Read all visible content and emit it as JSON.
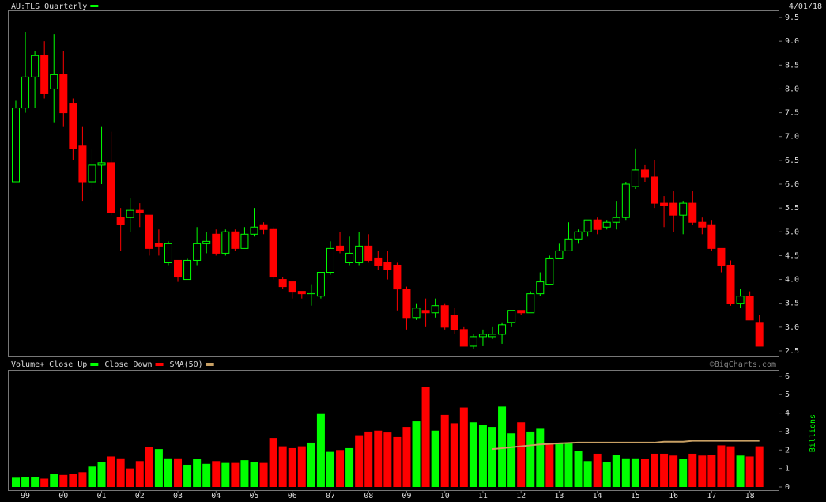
{
  "chart_data": [
    {
      "type": "candlestick",
      "title": "AU:TLS Quarterly",
      "date": "4/01/18",
      "color": "#00ff00",
      "up_color": "#00ff00",
      "down_color": "#ff0000",
      "open": [
        6.05,
        7.6,
        8.25,
        8.7,
        8.0,
        8.3,
        7.7,
        6.8,
        6.05,
        6.4,
        6.45,
        5.3,
        5.3,
        5.45,
        5.35,
        4.75,
        4.35,
        4.4,
        4.0,
        4.4,
        4.75,
        4.95,
        4.55,
        5.0,
        4.65,
        4.95,
        5.15,
        5.05,
        4.0,
        3.95,
        3.75,
        3.7,
        3.65,
        4.15,
        4.7,
        4.35,
        4.35,
        4.7,
        4.45,
        4.35,
        4.3,
        3.8,
        3.2,
        3.35,
        3.3,
        3.45,
        3.25,
        2.95,
        2.6,
        2.8,
        2.8,
        2.85,
        3.1,
        3.35,
        3.3,
        3.7,
        3.9,
        4.45,
        4.6,
        4.85,
        5.0,
        5.25,
        5.1,
        5.2,
        5.3,
        5.95,
        6.3,
        6.15,
        5.6,
        5.6,
        5.35,
        5.6,
        5.2,
        5.15,
        4.65,
        4.3,
        3.5,
        3.65,
        3.1
      ],
      "high": [
        7.75,
        9.2,
        8.8,
        9.0,
        9.15,
        8.8,
        7.8,
        7.2,
        6.75,
        7.2,
        7.1,
        5.5,
        5.7,
        5.6,
        5.35,
        5.05,
        4.8,
        4.4,
        4.45,
        5.1,
        5.0,
        5.05,
        5.05,
        5.05,
        5.1,
        5.5,
        5.2,
        5.1,
        4.05,
        3.95,
        3.75,
        3.9,
        4.15,
        4.8,
        5.0,
        4.9,
        5.0,
        4.95,
        4.6,
        4.6,
        4.35,
        3.85,
        3.5,
        3.6,
        3.6,
        3.5,
        3.4,
        3.0,
        2.85,
        2.95,
        3.0,
        3.1,
        3.35,
        3.35,
        3.75,
        4.15,
        4.5,
        4.75,
        5.2,
        5.05,
        5.25,
        5.3,
        5.25,
        5.65,
        6.05,
        6.75,
        6.4,
        6.5,
        5.75,
        5.85,
        5.65,
        5.85,
        5.3,
        5.25,
        4.65,
        4.4,
        3.8,
        3.75,
        3.25
      ],
      "low": [
        6.05,
        7.5,
        7.6,
        7.8,
        7.3,
        7.2,
        6.5,
        5.65,
        5.85,
        6.0,
        5.35,
        4.6,
        5.0,
        5.1,
        4.5,
        4.5,
        4.3,
        3.95,
        4.0,
        4.3,
        4.55,
        4.5,
        4.5,
        4.6,
        4.65,
        4.9,
        4.95,
        4.0,
        3.8,
        3.6,
        3.6,
        3.45,
        3.6,
        4.1,
        4.55,
        4.3,
        4.3,
        4.35,
        4.2,
        4.0,
        3.35,
        2.95,
        3.15,
        3.0,
        3.2,
        2.95,
        2.85,
        2.6,
        2.55,
        2.6,
        2.75,
        2.65,
        3.0,
        3.25,
        3.3,
        3.65,
        3.9,
        4.45,
        4.6,
        4.75,
        4.9,
        4.95,
        5.05,
        5.05,
        5.25,
        5.9,
        6.05,
        5.5,
        5.1,
        5.0,
        4.95,
        5.15,
        4.95,
        4.6,
        4.15,
        3.45,
        3.4,
        3.15,
        2.6
      ],
      "close": [
        7.6,
        8.25,
        8.7,
        7.9,
        8.3,
        7.5,
        6.75,
        6.05,
        6.4,
        6.45,
        5.4,
        5.15,
        5.45,
        5.4,
        4.65,
        4.7,
        4.75,
        4.05,
        4.4,
        4.75,
        4.8,
        4.55,
        5.0,
        4.65,
        4.95,
        5.1,
        5.05,
        4.05,
        3.85,
        3.75,
        3.7,
        3.72,
        4.15,
        4.65,
        4.6,
        4.55,
        4.7,
        4.4,
        4.3,
        4.2,
        3.8,
        3.2,
        3.4,
        3.3,
        3.45,
        3.0,
        2.95,
        2.6,
        2.8,
        2.85,
        2.85,
        3.05,
        3.35,
        3.3,
        3.7,
        3.95,
        4.45,
        4.6,
        4.85,
        5.0,
        5.25,
        5.05,
        5.2,
        5.3,
        6.0,
        6.3,
        6.15,
        5.6,
        5.55,
        5.35,
        5.6,
        5.2,
        5.1,
        4.65,
        4.3,
        3.5,
        3.65,
        3.15,
        2.6
      ],
      "ylim": [
        2.4,
        9.65
      ],
      "yticks": [
        {
          "value": 2.5,
          "label": "2.5"
        },
        {
          "value": 3,
          "label": "3.0"
        },
        {
          "value": 3.5,
          "label": "3.5"
        },
        {
          "value": 4,
          "label": "4.0"
        },
        {
          "value": 4.5,
          "label": "4.5"
        },
        {
          "value": 5,
          "label": "5.0"
        },
        {
          "value": 5.5,
          "label": "5.5"
        },
        {
          "value": 6,
          "label": "6.0"
        },
        {
          "value": 6.5,
          "label": "6.5"
        },
        {
          "value": 7,
          "label": "7.0"
        },
        {
          "value": 7.5,
          "label": "7.5"
        },
        {
          "value": 8,
          "label": "8.0"
        },
        {
          "value": 8.5,
          "label": "8.5"
        },
        {
          "value": 9,
          "label": "9.0"
        },
        {
          "value": 9.5,
          "label": "9.5"
        }
      ]
    },
    {
      "type": "bar",
      "source": "©BigCharts.com",
      "y_label": "Billions",
      "legend": [
        {
          "label": "Volume+ Close Up",
          "color": "#00ff00"
        },
        {
          "label": "Close Down",
          "color": "#ff0000"
        }
      ],
      "categories": [
        null,
        "99",
        null,
        null,
        null,
        "00",
        null,
        null,
        null,
        "01",
        null,
        null,
        null,
        "02",
        null,
        null,
        null,
        "03",
        null,
        null,
        null,
        "04",
        null,
        null,
        null,
        "05",
        null,
        null,
        null,
        "06",
        null,
        null,
        null,
        "07",
        null,
        null,
        null,
        "08",
        null,
        null,
        null,
        "09",
        null,
        null,
        null,
        "10",
        null,
        null,
        null,
        "11",
        null,
        null,
        null,
        "12",
        null,
        null,
        null,
        "13",
        null,
        null,
        null,
        "14",
        null,
        null,
        null,
        "15",
        null,
        null,
        null,
        "16",
        null,
        null,
        null,
        "17",
        null,
        null,
        null,
        "18",
        null
      ],
      "values": [
        0.5,
        0.55,
        0.55,
        0.45,
        0.7,
        0.65,
        0.7,
        0.8,
        1.1,
        1.35,
        1.65,
        1.55,
        1.0,
        1.4,
        2.15,
        2.05,
        1.55,
        1.55,
        1.2,
        1.5,
        1.25,
        1.4,
        1.3,
        1.3,
        1.45,
        1.35,
        1.3,
        2.65,
        2.2,
        2.1,
        2.2,
        2.4,
        3.95,
        1.9,
        2.0,
        2.1,
        2.8,
        3.0,
        3.05,
        2.95,
        2.7,
        3.25,
        3.55,
        5.4,
        3.05,
        3.9,
        3.45,
        4.3,
        3.5,
        3.35,
        3.25,
        4.35,
        2.9,
        3.5,
        3.0,
        3.15,
        2.35,
        2.4,
        2.35,
        1.95,
        1.4,
        1.8,
        1.35,
        1.75,
        1.55,
        1.55,
        1.5,
        1.8,
        1.8,
        1.7,
        1.5,
        1.8,
        1.7,
        1.75,
        2.25,
        2.2,
        1.7,
        1.65,
        2.2
      ],
      "colors": [
        "#00ff00",
        "#00ff00",
        "#00ff00",
        "#ff0000",
        "#00ff00",
        "#ff0000",
        "#ff0000",
        "#ff0000",
        "#00ff00",
        "#00ff00",
        "#ff0000",
        "#ff0000",
        "#ff0000",
        "#ff0000",
        "#ff0000",
        "#00ff00",
        "#00ff00",
        "#ff0000",
        "#00ff00",
        "#00ff00",
        "#00ff00",
        "#ff0000",
        "#00ff00",
        "#ff0000",
        "#00ff00",
        "#00ff00",
        "#ff0000",
        "#ff0000",
        "#ff0000",
        "#ff0000",
        "#ff0000",
        "#00ff00",
        "#00ff00",
        "#00ff00",
        "#ff0000",
        "#00ff00",
        "#ff0000",
        "#ff0000",
        "#ff0000",
        "#ff0000",
        "#ff0000",
        "#ff0000",
        "#00ff00",
        "#ff0000",
        "#00ff00",
        "#ff0000",
        "#ff0000",
        "#ff0000",
        "#00ff00",
        "#00ff00",
        "#00ff00",
        "#00ff00",
        "#00ff00",
        "#ff0000",
        "#00ff00",
        "#00ff00",
        "#ff0000",
        "#00ff00",
        "#00ff00",
        "#00ff00",
        "#00ff00",
        "#ff0000",
        "#00ff00",
        "#00ff00",
        "#00ff00",
        "#00ff00",
        "#ff0000",
        "#ff0000",
        "#ff0000",
        "#ff0000",
        "#00ff00",
        "#ff0000",
        "#ff0000",
        "#ff0000",
        "#ff0000",
        "#ff0000",
        "#00ff00",
        "#ff0000",
        "#ff0000"
      ],
      "series": [
        {
          "name": "SMA(50)",
          "color": "#c8a064",
          "values": [
            null,
            null,
            null,
            null,
            null,
            null,
            null,
            null,
            null,
            null,
            null,
            null,
            null,
            null,
            null,
            null,
            null,
            null,
            null,
            null,
            null,
            null,
            null,
            null,
            null,
            null,
            null,
            null,
            null,
            null,
            null,
            null,
            null,
            null,
            null,
            null,
            null,
            null,
            null,
            null,
            null,
            null,
            null,
            null,
            null,
            null,
            null,
            null,
            null,
            null,
            2.05,
            2.1,
            2.15,
            2.2,
            2.25,
            2.3,
            2.33,
            2.36,
            2.38,
            2.4,
            2.4,
            2.4,
            2.4,
            2.4,
            2.4,
            2.4,
            2.4,
            2.4,
            2.45,
            2.45,
            2.45,
            2.5,
            2.5,
            2.5,
            2.5,
            2.5,
            2.5,
            2.5,
            2.5
          ]
        }
      ],
      "ylim": [
        0,
        6.25
      ],
      "yticks": [
        0,
        1,
        2,
        3,
        4,
        5,
        6
      ]
    }
  ]
}
